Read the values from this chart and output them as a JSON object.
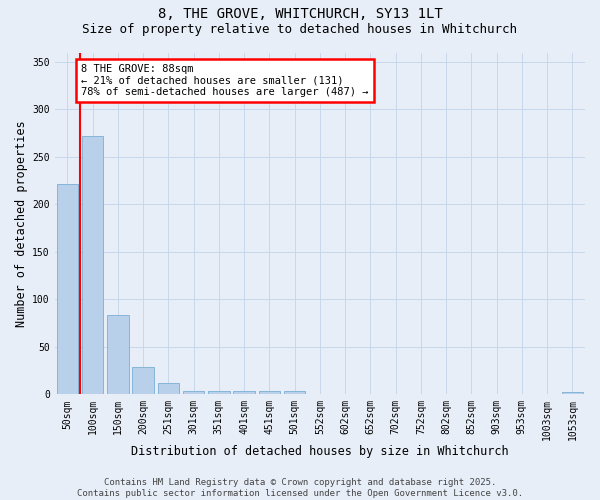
{
  "title_line1": "8, THE GROVE, WHITCHURCH, SY13 1LT",
  "title_line2": "Size of property relative to detached houses in Whitchurch",
  "xlabel": "Distribution of detached houses by size in Whitchurch",
  "ylabel": "Number of detached properties",
  "categories": [
    "50sqm",
    "100sqm",
    "150sqm",
    "200sqm",
    "251sqm",
    "301sqm",
    "351sqm",
    "401sqm",
    "451sqm",
    "501sqm",
    "552sqm",
    "602sqm",
    "652sqm",
    "702sqm",
    "752sqm",
    "802sqm",
    "852sqm",
    "903sqm",
    "953sqm",
    "1003sqm",
    "1053sqm"
  ],
  "values": [
    222,
    272,
    84,
    29,
    12,
    4,
    3,
    4,
    4,
    3,
    0,
    0,
    0,
    0,
    0,
    0,
    0,
    0,
    0,
    0,
    2
  ],
  "bar_color": "#b8d0ea",
  "bar_edge_color": "#7aafd4",
  "annotation_text_line1": "8 THE GROVE: 88sqm",
  "annotation_text_line2": "← 21% of detached houses are smaller (131)",
  "annotation_text_line3": "78% of semi-detached houses are larger (487) →",
  "annotation_box_color": "white",
  "annotation_box_edge_color": "red",
  "ylim": [
    0,
    360
  ],
  "yticks": [
    0,
    50,
    100,
    150,
    200,
    250,
    300,
    350
  ],
  "grid_color": "#c8d8ec",
  "background_color": "#e8eef8",
  "footer_line1": "Contains HM Land Registry data © Crown copyright and database right 2025.",
  "footer_line2": "Contains public sector information licensed under the Open Government Licence v3.0.",
  "title_fontsize": 10,
  "subtitle_fontsize": 9,
  "axis_label_fontsize": 8.5,
  "tick_fontsize": 7,
  "annotation_fontsize": 7.5,
  "footer_fontsize": 6.5,
  "red_line_x": 0.5
}
